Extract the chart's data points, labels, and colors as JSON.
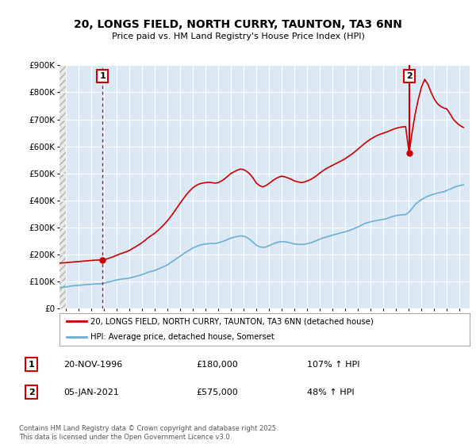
{
  "title": "20, LONGS FIELD, NORTH CURRY, TAUNTON, TA3 6NN",
  "subtitle": "Price paid vs. HM Land Registry's House Price Index (HPI)",
  "legend_label_red": "20, LONGS FIELD, NORTH CURRY, TAUNTON, TA3 6NN (detached house)",
  "legend_label_blue": "HPI: Average price, detached house, Somerset",
  "ann1_label": "1",
  "ann1_date": "20-NOV-1996",
  "ann1_price": "£180,000",
  "ann1_hpi": "107% ↑ HPI",
  "ann1_x": 1996.89,
  "ann1_y": 180000,
  "ann2_label": "2",
  "ann2_date": "05-JAN-2021",
  "ann2_price": "£575,000",
  "ann2_hpi": "48% ↑ HPI",
  "ann2_x": 2021.02,
  "ann2_y": 575000,
  "footer": "Contains HM Land Registry data © Crown copyright and database right 2025.\nThis data is licensed under the Open Government Licence v3.0.",
  "ylim": [
    0,
    900000
  ],
  "ytick_max": 900000,
  "xlim_start": 1993.5,
  "xlim_end": 2025.8,
  "hatch_end": 1994.0,
  "bg_color": "#ffffff",
  "plot_bg_color": "#dce9f5",
  "hatch_bg_color": "#e8e8e8",
  "grid_color": "#ffffff",
  "red_color": "#cc0000",
  "blue_color": "#6baed6",
  "hpi_years": [
    1993.5,
    1994.0,
    1994.25,
    1994.5,
    1994.75,
    1995.0,
    1995.25,
    1995.5,
    1995.75,
    1996.0,
    1996.25,
    1996.5,
    1996.75,
    1997.0,
    1997.25,
    1997.5,
    1997.75,
    1998.0,
    1998.25,
    1998.5,
    1998.75,
    1999.0,
    1999.25,
    1999.5,
    1999.75,
    2000.0,
    2000.25,
    2000.5,
    2000.75,
    2001.0,
    2001.25,
    2001.5,
    2001.75,
    2002.0,
    2002.25,
    2002.5,
    2002.75,
    2003.0,
    2003.25,
    2003.5,
    2003.75,
    2004.0,
    2004.25,
    2004.5,
    2004.75,
    2005.0,
    2005.25,
    2005.5,
    2005.75,
    2006.0,
    2006.25,
    2006.5,
    2006.75,
    2007.0,
    2007.25,
    2007.5,
    2007.75,
    2008.0,
    2008.25,
    2008.5,
    2008.75,
    2009.0,
    2009.25,
    2009.5,
    2009.75,
    2010.0,
    2010.25,
    2010.5,
    2010.75,
    2011.0,
    2011.25,
    2011.5,
    2011.75,
    2012.0,
    2012.25,
    2012.5,
    2012.75,
    2013.0,
    2013.25,
    2013.5,
    2013.75,
    2014.0,
    2014.25,
    2014.5,
    2014.75,
    2015.0,
    2015.25,
    2015.5,
    2015.75,
    2016.0,
    2016.25,
    2016.5,
    2016.75,
    2017.0,
    2017.25,
    2017.5,
    2017.75,
    2018.0,
    2018.25,
    2018.5,
    2018.75,
    2019.0,
    2019.25,
    2019.5,
    2019.75,
    2020.0,
    2020.25,
    2020.5,
    2020.75,
    2021.0,
    2021.25,
    2021.5,
    2021.75,
    2022.0,
    2022.25,
    2022.5,
    2022.75,
    2023.0,
    2023.25,
    2023.5,
    2023.75,
    2024.0,
    2024.25,
    2024.5,
    2024.75,
    2025.0,
    2025.3
  ],
  "hpi_values": [
    78000,
    80000,
    82000,
    84000,
    85000,
    86000,
    87000,
    88000,
    89000,
    90000,
    91000,
    91500,
    92000,
    94000,
    97000,
    100000,
    103000,
    106000,
    108000,
    110000,
    111000,
    113000,
    116000,
    119000,
    122000,
    126000,
    130000,
    135000,
    138000,
    141000,
    146000,
    151000,
    156000,
    162000,
    170000,
    178000,
    186000,
    194000,
    202000,
    210000,
    217000,
    224000,
    229000,
    234000,
    237000,
    239000,
    240000,
    241000,
    241000,
    243000,
    247000,
    251000,
    256000,
    261000,
    264000,
    267000,
    269000,
    268000,
    263000,
    255000,
    245000,
    234000,
    229000,
    226000,
    228000,
    233000,
    238000,
    243000,
    246000,
    248000,
    247000,
    245000,
    242000,
    239000,
    238000,
    237000,
    238000,
    240000,
    243000,
    247000,
    252000,
    257000,
    261000,
    265000,
    268000,
    272000,
    275000,
    278000,
    281000,
    284000,
    288000,
    292000,
    297000,
    302000,
    308000,
    314000,
    318000,
    321000,
    324000,
    326000,
    328000,
    330000,
    333000,
    337000,
    341000,
    344000,
    346000,
    347000,
    348000,
    356000,
    370000,
    385000,
    395000,
    403000,
    410000,
    416000,
    420000,
    424000,
    427000,
    430000,
    432000,
    437000,
    442000,
    447000,
    452000,
    455000,
    458000
  ],
  "red_years": [
    1993.5,
    1994.0,
    1994.25,
    1994.5,
    1994.75,
    1995.0,
    1995.25,
    1995.5,
    1995.75,
    1996.0,
    1996.25,
    1996.5,
    1996.75,
    1996.89,
    1997.0,
    1997.25,
    1997.5,
    1997.75,
    1998.0,
    1998.25,
    1998.5,
    1998.75,
    1999.0,
    1999.25,
    1999.5,
    1999.75,
    2000.0,
    2000.25,
    2000.5,
    2000.75,
    2001.0,
    2001.25,
    2001.5,
    2001.75,
    2002.0,
    2002.25,
    2002.5,
    2002.75,
    2003.0,
    2003.25,
    2003.5,
    2003.75,
    2004.0,
    2004.25,
    2004.5,
    2004.75,
    2005.0,
    2005.25,
    2005.5,
    2005.75,
    2006.0,
    2006.25,
    2006.5,
    2006.75,
    2007.0,
    2007.25,
    2007.5,
    2007.75,
    2008.0,
    2008.25,
    2008.5,
    2008.75,
    2009.0,
    2009.25,
    2009.5,
    2009.75,
    2010.0,
    2010.25,
    2010.5,
    2010.75,
    2011.0,
    2011.25,
    2011.5,
    2011.75,
    2012.0,
    2012.25,
    2012.5,
    2012.75,
    2013.0,
    2013.25,
    2013.5,
    2013.75,
    2014.0,
    2014.25,
    2014.5,
    2014.75,
    2015.0,
    2015.25,
    2015.5,
    2015.75,
    2016.0,
    2016.25,
    2016.5,
    2016.75,
    2017.0,
    2017.25,
    2017.5,
    2017.75,
    2018.0,
    2018.25,
    2018.5,
    2018.75,
    2019.0,
    2019.25,
    2019.5,
    2019.75,
    2020.0,
    2020.25,
    2020.5,
    2020.75,
    2021.02,
    2021.25,
    2021.5,
    2021.75,
    2022.0,
    2022.25,
    2022.5,
    2022.75,
    2023.0,
    2023.25,
    2023.5,
    2023.75,
    2024.0,
    2024.25,
    2024.5,
    2024.75,
    2025.0,
    2025.3
  ],
  "red_values": [
    168000,
    170000,
    171000,
    172000,
    173000,
    174000,
    175000,
    176000,
    177000,
    178000,
    179000,
    179500,
    180000,
    180000,
    181000,
    184000,
    188000,
    192000,
    197000,
    202000,
    206000,
    210000,
    215000,
    222000,
    229000,
    236000,
    244000,
    253000,
    263000,
    271000,
    279000,
    289000,
    300000,
    312000,
    325000,
    340000,
    356000,
    373000,
    390000,
    406000,
    422000,
    435000,
    447000,
    455000,
    461000,
    464000,
    466000,
    467000,
    466000,
    464000,
    466000,
    472000,
    480000,
    490000,
    500000,
    506000,
    512000,
    516000,
    514000,
    507000,
    497000,
    482000,
    464000,
    455000,
    450000,
    455000,
    463000,
    472000,
    480000,
    486000,
    490000,
    487000,
    483000,
    478000,
    472000,
    469000,
    466000,
    468000,
    472000,
    477000,
    484000,
    492000,
    502000,
    510000,
    518000,
    524000,
    530000,
    536000,
    542000,
    548000,
    555000,
    563000,
    571000,
    580000,
    590000,
    600000,
    610000,
    619000,
    627000,
    634000,
    640000,
    645000,
    649000,
    653000,
    658000,
    663000,
    667000,
    670000,
    672000,
    673000,
    575000,
    650000,
    720000,
    775000,
    820000,
    848000,
    830000,
    800000,
    775000,
    758000,
    748000,
    742000,
    738000,
    720000,
    700000,
    688000,
    678000,
    670000
  ]
}
